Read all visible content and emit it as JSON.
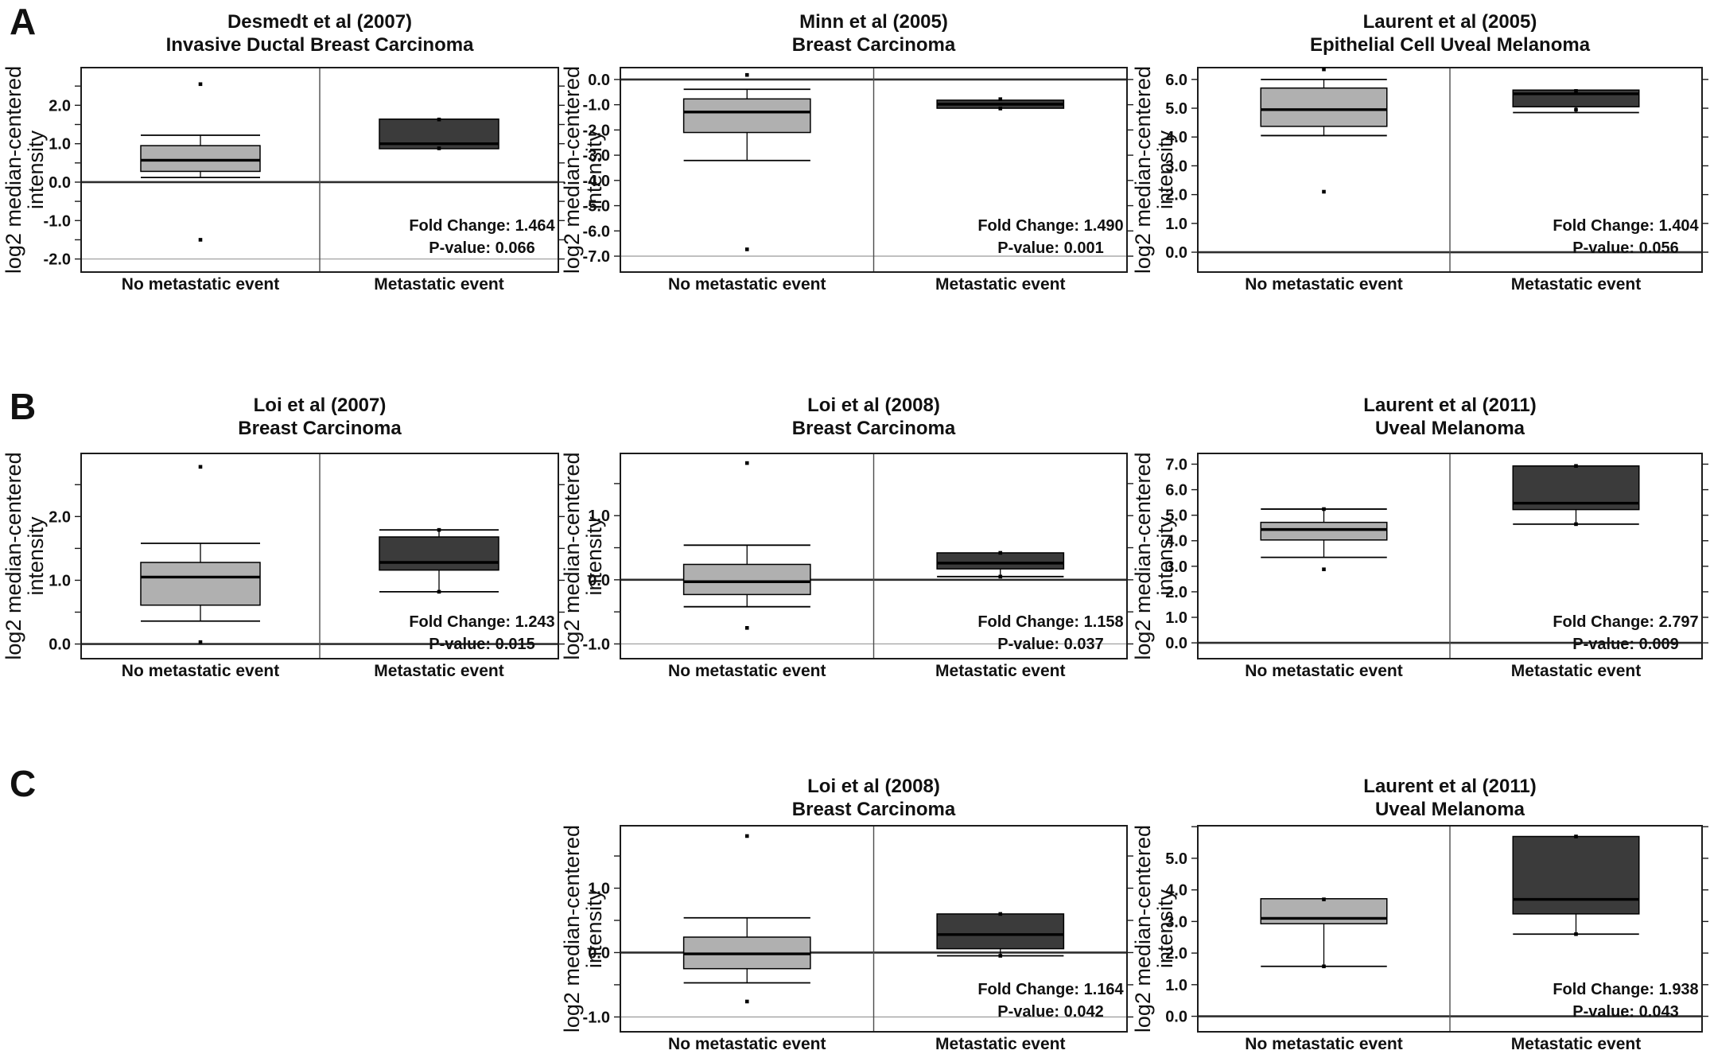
{
  "figure": {
    "background": "#ffffff",
    "panel_labels": [
      "A",
      "B",
      "C"
    ]
  },
  "colors": {
    "box_no_event": "#b0b0b0",
    "box_event": "#3b3b3b",
    "box_border": "#000000",
    "median": "#000000",
    "dot": "#000000",
    "axis": "#1c1c1c",
    "divider": "#4d4d4d",
    "zero_line": "#2e2e2e",
    "gridline": "#9a9a9a",
    "text": "#111111"
  },
  "axis": {
    "ylabel_lines": [
      "log2 median-centered",
      "intensity"
    ]
  },
  "categories": [
    "No metastatic event",
    "Metastatic event"
  ],
  "chart_data": [
    {
      "type": "box",
      "panel": "A",
      "row": 0,
      "col": 0,
      "title": [
        "Desmedt et al (2007)",
        "Invasive Ductal Breast Carcinoma"
      ],
      "ylim": [
        -2.34,
        2.98
      ],
      "yticks": [
        2.0,
        1.0,
        0.0,
        -1.0,
        -2.0
      ],
      "tick_step": 0.5,
      "gridlines": [
        -2.0
      ],
      "zero_line": 0.0,
      "fold_change_label": "Fold Change: 1.464",
      "p_value_label": "P-value: 0.066",
      "boxes": [
        {
          "label": "No metastatic event",
          "variant": "no_event",
          "whisker_low": 0.12,
          "q1": 0.28,
          "median": 0.57,
          "q3": 0.95,
          "whisker_high": 1.22,
          "outliers": [
            2.55,
            -1.5
          ],
          "points": []
        },
        {
          "label": "Metastatic event",
          "variant": "event",
          "whisker_low": 0.87,
          "q1": 0.87,
          "median": 1.0,
          "q3": 1.64,
          "whisker_high": 1.64,
          "outliers": [],
          "points": [
            1.63,
            0.88
          ]
        }
      ]
    },
    {
      "type": "box",
      "panel": "A",
      "row": 0,
      "col": 1,
      "title": [
        "Minn et al (2005)",
        "Breast Carcinoma"
      ],
      "ylim": [
        -7.63,
        0.47
      ],
      "yticks": [
        0.0,
        -1.0,
        -2.0,
        -3.0,
        -4.0,
        -5.0,
        -6.0,
        -7.0
      ],
      "tick_step": 1.0,
      "gridlines": [
        -7.0
      ],
      "zero_line": 0.0,
      "fold_change_label": "Fold Change: 1.490",
      "p_value_label": "P-value: 0.001",
      "boxes": [
        {
          "label": "No metastatic event",
          "variant": "no_event",
          "whisker_low": -3.21,
          "q1": -2.1,
          "median": -1.29,
          "q3": -0.77,
          "whisker_high": -0.39,
          "outliers": [
            0.18,
            -6.73
          ],
          "points": []
        },
        {
          "label": "Metastatic event",
          "variant": "event",
          "whisker_low": -1.14,
          "q1": -1.14,
          "median": -0.98,
          "q3": -0.82,
          "whisker_high": -0.82,
          "outliers": [],
          "points": [
            -0.78,
            -1.15
          ]
        }
      ]
    },
    {
      "type": "box",
      "panel": "A",
      "row": 0,
      "col": 2,
      "title": [
        "Laurent et al (2005)",
        "Epithelial Cell Uveal Melanoma"
      ],
      "ylim": [
        -0.69,
        6.41
      ],
      "yticks": [
        6.0,
        5.0,
        4.0,
        3.0,
        2.0,
        1.0,
        0.0
      ],
      "tick_step": 1.0,
      "gridlines": [],
      "zero_line": 0.0,
      "fold_change_label": "Fold Change: 1.404",
      "p_value_label": "P-value: 0.056",
      "boxes": [
        {
          "label": "No metastatic event",
          "variant": "no_event",
          "whisker_low": 4.05,
          "q1": 4.37,
          "median": 4.95,
          "q3": 5.7,
          "whisker_high": 6.0,
          "outliers": [
            6.35,
            2.1
          ],
          "points": []
        },
        {
          "label": "Metastatic event",
          "variant": "event",
          "whisker_low": 4.85,
          "q1": 5.05,
          "median": 5.5,
          "q3": 5.63,
          "whisker_high": 5.63,
          "outliers": [],
          "points": [
            5.6,
            4.95
          ]
        }
      ]
    },
    {
      "type": "box",
      "panel": "B",
      "row": 1,
      "col": 0,
      "title": [
        "Loi et al (2007)",
        "Breast Carcinoma"
      ],
      "ylim": [
        -0.23,
        2.99
      ],
      "yticks": [
        2.0,
        1.0,
        0.0
      ],
      "tick_step": 0.5,
      "gridlines": [],
      "zero_line": 0.0,
      "fold_change_label": "Fold Change: 1.243",
      "p_value_label": "P-value: 0.015",
      "boxes": [
        {
          "label": "No metastatic event",
          "variant": "no_event",
          "whisker_low": 0.36,
          "q1": 0.61,
          "median": 1.05,
          "q3": 1.28,
          "whisker_high": 1.58,
          "outliers": [
            2.78,
            0.03
          ],
          "points": []
        },
        {
          "label": "Metastatic event",
          "variant": "event",
          "whisker_low": 0.82,
          "q1": 1.16,
          "median": 1.28,
          "q3": 1.68,
          "whisker_high": 1.79,
          "outliers": [],
          "points": [
            1.79,
            0.82
          ]
        }
      ]
    },
    {
      "type": "box",
      "panel": "B",
      "row": 1,
      "col": 1,
      "title": [
        "Loi et al (2008)",
        "Breast Carcinoma"
      ],
      "ylim": [
        -1.23,
        1.97
      ],
      "yticks": [
        1.0,
        0.0,
        -1.0
      ],
      "tick_step": 0.5,
      "gridlines": [
        -1.0
      ],
      "zero_line": 0.0,
      "fold_change_label": "Fold Change: 1.158",
      "p_value_label": "P-value: 0.037",
      "boxes": [
        {
          "label": "No metastatic event",
          "variant": "no_event",
          "whisker_low": -0.42,
          "q1": -0.23,
          "median": -0.03,
          "q3": 0.24,
          "whisker_high": 0.54,
          "outliers": [
            1.82,
            -0.75
          ],
          "points": []
        },
        {
          "label": "Metastatic event",
          "variant": "event",
          "whisker_low": 0.05,
          "q1": 0.17,
          "median": 0.26,
          "q3": 0.42,
          "whisker_high": 0.42,
          "outliers": [],
          "points": [
            0.42,
            0.05
          ]
        }
      ]
    },
    {
      "type": "box",
      "panel": "B",
      "row": 1,
      "col": 2,
      "title": [
        "Laurent et al (2011)",
        "Uveal Melanoma"
      ],
      "ylim": [
        -0.62,
        7.42
      ],
      "yticks": [
        7.0,
        6.0,
        5.0,
        4.0,
        3.0,
        2.0,
        1.0,
        0.0
      ],
      "tick_step": 1.0,
      "gridlines": [],
      "zero_line": 0.0,
      "fold_change_label": "Fold Change: 2.797",
      "p_value_label": "P-value: 0.009",
      "boxes": [
        {
          "label": "No metastatic event",
          "variant": "no_event",
          "whisker_low": 3.35,
          "q1": 4.03,
          "median": 4.44,
          "q3": 4.72,
          "whisker_high": 5.24,
          "outliers": [
            2.88
          ],
          "points": [
            5.24
          ]
        },
        {
          "label": "Metastatic event",
          "variant": "event",
          "whisker_low": 4.65,
          "q1": 5.22,
          "median": 5.47,
          "q3": 6.93,
          "whisker_high": 6.93,
          "outliers": [],
          "points": [
            6.93,
            4.65
          ]
        }
      ]
    },
    {
      "type": "box",
      "panel": "C",
      "row": 2,
      "col": 1,
      "title": [
        "Loi et al (2008)",
        "Breast Carcinoma"
      ],
      "ylim": [
        -1.23,
        1.97
      ],
      "yticks": [
        1.0,
        0.0,
        -1.0
      ],
      "tick_step": 0.5,
      "gridlines": [
        -1.0
      ],
      "zero_line": 0.0,
      "fold_change_label": "Fold Change: 1.164",
      "p_value_label": "P-value: 0.042",
      "boxes": [
        {
          "label": "No metastatic event",
          "variant": "no_event",
          "whisker_low": -0.47,
          "q1": -0.25,
          "median": -0.02,
          "q3": 0.24,
          "whisker_high": 0.54,
          "outliers": [
            1.81,
            -0.76
          ],
          "points": []
        },
        {
          "label": "Metastatic event",
          "variant": "event",
          "whisker_low": -0.05,
          "q1": 0.06,
          "median": 0.28,
          "q3": 0.6,
          "whisker_high": 0.6,
          "outliers": [],
          "points": [
            0.6,
            -0.05
          ]
        }
      ]
    },
    {
      "type": "box",
      "panel": "C",
      "row": 2,
      "col": 2,
      "title": [
        "Laurent et al (2011)",
        "Uveal Melanoma"
      ],
      "ylim": [
        -0.49,
        6.03
      ],
      "yticks": [
        5.0,
        4.0,
        3.0,
        2.0,
        1.0,
        0.0
      ],
      "tick_step": 1.0,
      "gridlines": [],
      "zero_line": 0.0,
      "fold_change_label": "Fold Change: 1.938",
      "p_value_label": "P-value: 0.043",
      "boxes": [
        {
          "label": "No metastatic event",
          "variant": "no_event",
          "whisker_low": 1.58,
          "q1": 2.93,
          "median": 3.1,
          "q3": 3.72,
          "whisker_high": 3.72,
          "outliers": [],
          "points": [
            3.7,
            1.58
          ]
        },
        {
          "label": "Metastatic event",
          "variant": "event",
          "whisker_low": 2.6,
          "q1": 3.24,
          "median": 3.7,
          "q3": 5.69,
          "whisker_high": 5.69,
          "outliers": [],
          "points": [
            5.69,
            2.6
          ]
        }
      ]
    }
  ]
}
